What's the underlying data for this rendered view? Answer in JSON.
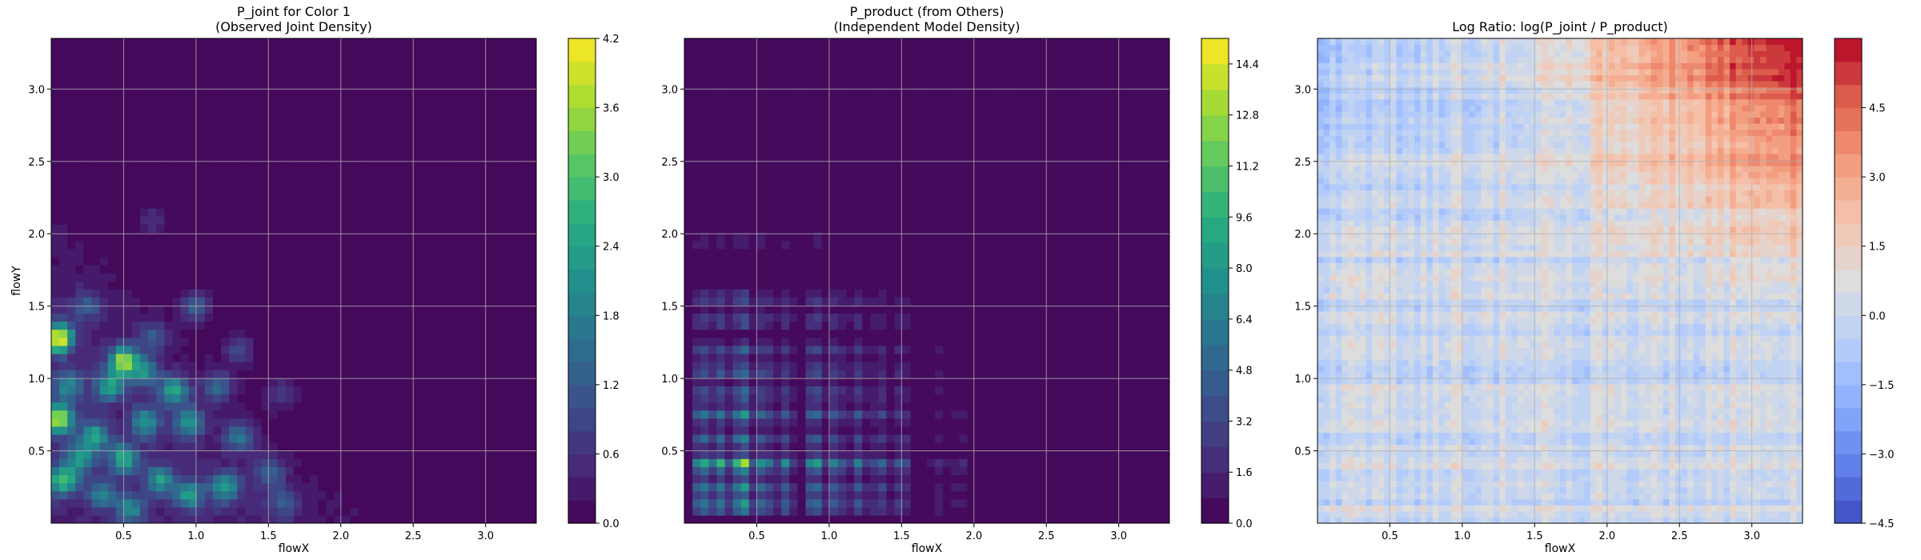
{
  "chart_data": [
    {
      "type": "heatmap",
      "title": "P_joint for Color 1\n(Observed Joint Density)",
      "xlabel": "flowX",
      "ylabel": "flowY",
      "xlim": [
        0.0,
        3.35
      ],
      "ylim": [
        0.0,
        3.35
      ],
      "xticks": [
        0.5,
        1.0,
        1.5,
        2.0,
        2.5,
        3.0
      ],
      "yticks": [
        0.5,
        1.0,
        1.5,
        2.0,
        2.5,
        3.0
      ],
      "grid": true,
      "colormap": "viridis",
      "colorbar": {
        "range": [
          0.0,
          4.2
        ],
        "levels": 21,
        "ticks": [
          "0.0",
          "0.6",
          "1.2",
          "1.8",
          "2.4",
          "3.0",
          "3.6",
          "4.2"
        ]
      },
      "peaks": [
        {
          "x": 0.05,
          "y": 1.28,
          "v": 3.9
        },
        {
          "x": 0.05,
          "y": 0.72,
          "v": 3.5
        },
        {
          "x": 0.5,
          "y": 1.12,
          "v": 3.3
        },
        {
          "x": 0.08,
          "y": 0.3,
          "v": 2.6
        },
        {
          "x": 0.4,
          "y": 0.95,
          "v": 2.0
        },
        {
          "x": 0.3,
          "y": 0.6,
          "v": 2.1
        },
        {
          "x": 0.5,
          "y": 0.45,
          "v": 2.2
        },
        {
          "x": 0.2,
          "y": 0.45,
          "v": 1.8
        },
        {
          "x": 0.65,
          "y": 0.7,
          "v": 1.9
        },
        {
          "x": 0.85,
          "y": 0.92,
          "v": 2.2
        },
        {
          "x": 0.65,
          "y": 1.05,
          "v": 1.6
        },
        {
          "x": 0.95,
          "y": 0.7,
          "v": 1.8
        },
        {
          "x": 0.75,
          "y": 0.3,
          "v": 1.9
        },
        {
          "x": 0.55,
          "y": 0.1,
          "v": 1.6
        },
        {
          "x": 0.95,
          "y": 0.2,
          "v": 2.0
        },
        {
          "x": 1.2,
          "y": 0.25,
          "v": 2.0
        },
        {
          "x": 1.3,
          "y": 0.6,
          "v": 1.4
        },
        {
          "x": 1.0,
          "y": 1.5,
          "v": 1.3
        },
        {
          "x": 1.5,
          "y": 0.35,
          "v": 1.2
        },
        {
          "x": 0.25,
          "y": 1.5,
          "v": 1.0
        },
        {
          "x": 1.15,
          "y": 0.95,
          "v": 1.3
        },
        {
          "x": 0.35,
          "y": 0.2,
          "v": 1.5
        },
        {
          "x": 0.12,
          "y": 0.95,
          "v": 1.6
        },
        {
          "x": 0.7,
          "y": 1.3,
          "v": 1.0
        },
        {
          "x": 1.3,
          "y": 1.2,
          "v": 0.9
        },
        {
          "x": 1.6,
          "y": 0.9,
          "v": 0.7
        },
        {
          "x": 0.7,
          "y": 2.1,
          "v": 0.6
        },
        {
          "x": 1.6,
          "y": 0.15,
          "v": 0.9
        }
      ]
    },
    {
      "type": "heatmap",
      "title": "P_product (from Others)\n(Independent Model Density)",
      "xlabel": "flowX",
      "ylabel": "",
      "xlim": [
        0.0,
        3.35
      ],
      "ylim": [
        0.0,
        3.35
      ],
      "xticks": [
        0.5,
        1.0,
        1.5,
        2.0,
        2.5,
        3.0
      ],
      "yticks": [
        0.5,
        1.0,
        1.5,
        2.0,
        2.5,
        3.0
      ],
      "grid": true,
      "colormap": "viridis",
      "colorbar": {
        "range": [
          0.0,
          15.2
        ],
        "levels": 19,
        "ticks": [
          "0.0",
          "1.6",
          "3.2",
          "4.8",
          "6.4",
          "8.0",
          "9.6",
          "11.2",
          "12.8",
          "14.4"
        ]
      },
      "marginal_x": [
        {
          "x": 0.12,
          "v": 1.3
        },
        {
          "x": 0.25,
          "v": 1.2
        },
        {
          "x": 0.4,
          "v": 1.8
        },
        {
          "x": 0.55,
          "v": 1.1
        },
        {
          "x": 0.7,
          "v": 0.9
        },
        {
          "x": 0.9,
          "v": 1.2
        },
        {
          "x": 1.05,
          "v": 0.9
        },
        {
          "x": 1.2,
          "v": 0.8
        },
        {
          "x": 1.35,
          "v": 0.7
        },
        {
          "x": 1.5,
          "v": 0.6
        },
        {
          "x": 1.75,
          "v": 0.3
        },
        {
          "x": 1.9,
          "v": 0.25
        }
      ],
      "marginal_y": [
        {
          "y": 0.12,
          "v": 1.2
        },
        {
          "y": 0.25,
          "v": 1.1
        },
        {
          "y": 0.41,
          "v": 1.8
        },
        {
          "y": 0.58,
          "v": 0.9
        },
        {
          "y": 0.75,
          "v": 1.1
        },
        {
          "y": 0.9,
          "v": 0.8
        },
        {
          "y": 1.05,
          "v": 0.8
        },
        {
          "y": 1.2,
          "v": 0.7
        },
        {
          "y": 1.4,
          "v": 0.6
        },
        {
          "y": 1.55,
          "v": 0.55
        },
        {
          "y": 1.95,
          "v": 0.25
        }
      ]
    },
    {
      "type": "heatmap",
      "title": "Log Ratio: log(P_joint / P_product)",
      "xlabel": "flowX",
      "ylabel": "",
      "xlim": [
        0.0,
        3.35
      ],
      "ylim": [
        0.0,
        3.35
      ],
      "xticks": [
        0.5,
        1.0,
        1.5,
        2.0,
        2.5,
        3.0
      ],
      "yticks": [
        0.5,
        1.0,
        1.5,
        2.0,
        2.5,
        3.0
      ],
      "grid": true,
      "colormap": "coolwarm",
      "colorbar": {
        "range": [
          -4.5,
          6.0
        ],
        "levels": 21,
        "ticks": [
          "−4.5",
          "−3.0",
          "−1.5",
          "0.0",
          "1.5",
          "3.0",
          "4.5"
        ]
      }
    }
  ]
}
